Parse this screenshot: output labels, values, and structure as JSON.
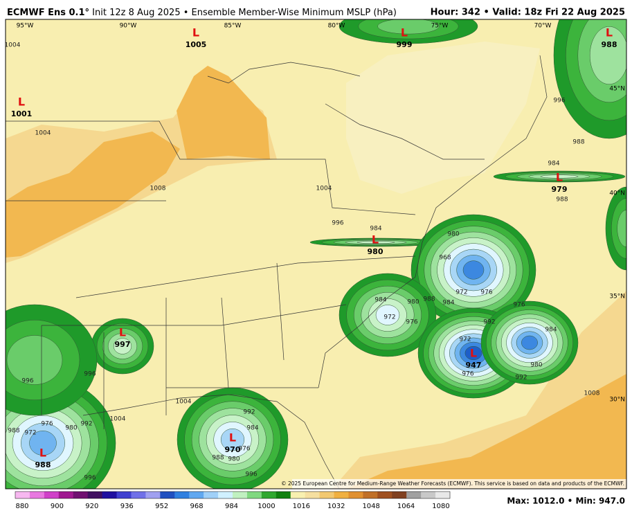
{
  "header": {
    "title_bold": "ECMWF Ens 0.1°",
    "title": "Init 12z 8 Aug 2025 • Ensemble Member-Wise Minimum MSLP (hPa)",
    "right": "Hour: 342 • Valid: 18z Fri 22 Aug 2025"
  },
  "longitudes": [
    "95°W",
    "90°W",
    "85°W",
    "80°W",
    "75°W",
    "70°W"
  ],
  "latitudes": [
    "45°N",
    "40°N",
    "35°N",
    "30°N"
  ],
  "lows": [
    {
      "symbol": "L",
      "pressure": "1005"
    },
    {
      "symbol": "L",
      "pressure": "999"
    },
    {
      "symbol": "L",
      "pressure": "988"
    },
    {
      "symbol": "L",
      "pressure": "1001"
    },
    {
      "symbol": "L",
      "pressure": "979"
    },
    {
      "symbol": "L",
      "pressure": "980"
    },
    {
      "symbol": "L",
      "pressure": "997"
    },
    {
      "symbol": "L",
      "pressure": "947"
    },
    {
      "symbol": "L",
      "pressure": "970"
    },
    {
      "symbol": "L",
      "pressure": "988"
    }
  ],
  "contour_labels": [
    "1004",
    "1004",
    "1008",
    "1004",
    "996",
    "984",
    "996",
    "988",
    "984",
    "988",
    "980",
    "968",
    "972",
    "976",
    "984",
    "988",
    "984",
    "972",
    "976",
    "980",
    "992",
    "976",
    "984",
    "972",
    "976",
    "980",
    "992",
    "1008",
    "996",
    "996",
    "1004",
    "1004",
    "992",
    "984",
    "976",
    "980",
    "988",
    "996",
    "976",
    "980",
    "972",
    "992",
    "988",
    "996"
  ],
  "copyright": "© 2025 European Centre for Medium-Range Weather Forecasts (ECMWF). This service is based on data and products of the ECMWF.",
  "colorbar": {
    "labels": [
      "880",
      "900",
      "920",
      "936",
      "952",
      "968",
      "984",
      "1000",
      "1016",
      "1032",
      "1048",
      "1064",
      "1080"
    ],
    "colors": [
      "#f7b8f0",
      "#e878e0",
      "#d040c8",
      "#a01890",
      "#701070",
      "#401060",
      "#2010a0",
      "#4040d0",
      "#7070e8",
      "#a0a0f0",
      "#2050c0",
      "#3080e0",
      "#60a8f0",
      "#a0d0f8",
      "#d0f0ff",
      "#c0f0c0",
      "#80d880",
      "#30a830",
      "#108010",
      "#f8f0b0",
      "#f5dfa0",
      "#f2c870",
      "#f0b040",
      "#e09030",
      "#c07028",
      "#a05020",
      "#804020",
      "#a0a0a0",
      "#c8c8c8",
      "#e8e8e8"
    ]
  },
  "footer": {
    "stats": "Max: 1012.0 • Min: 947.0"
  }
}
